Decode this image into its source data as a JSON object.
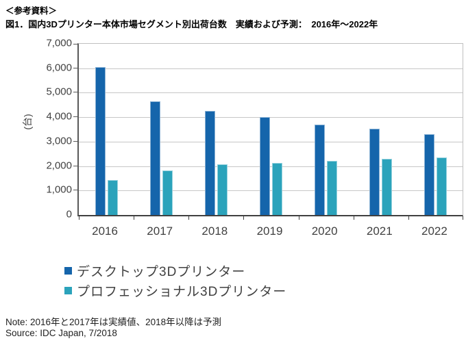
{
  "header": {
    "reference_label": "＜参考資料＞",
    "title": "図1．国内3Dプリンター本体市場セグメント別出荷台数　実績および予測：　2016年～2022年"
  },
  "chart_data": {
    "type": "bar",
    "categories": [
      "2016",
      "2017",
      "2018",
      "2019",
      "2020",
      "2021",
      "2022"
    ],
    "series": [
      {
        "name": "デスクトップ3Dプリンター",
        "color": "#1565ab",
        "values": [
          6050,
          4650,
          4270,
          4000,
          3700,
          3520,
          3300
        ]
      },
      {
        "name": "プロフェッショナル3Dプリンター",
        "color": "#2ba3bb",
        "values": [
          1440,
          1830,
          2060,
          2140,
          2210,
          2300,
          2350
        ]
      }
    ],
    "title": "",
    "xlabel": "",
    "ylabel": "(台)",
    "ylim": [
      0,
      7000
    ],
    "ytick_step": 1000,
    "grid": true,
    "legend_position": "bottom-left",
    "colors": {
      "gridline": "#c6c6c6",
      "axis": "#404040",
      "tick_text": "#404040"
    }
  },
  "footer": {
    "note": "Note: 2016年と2017年は実績値、2018年以降は予測",
    "source": "Source: IDC Japan, 7/2018"
  }
}
